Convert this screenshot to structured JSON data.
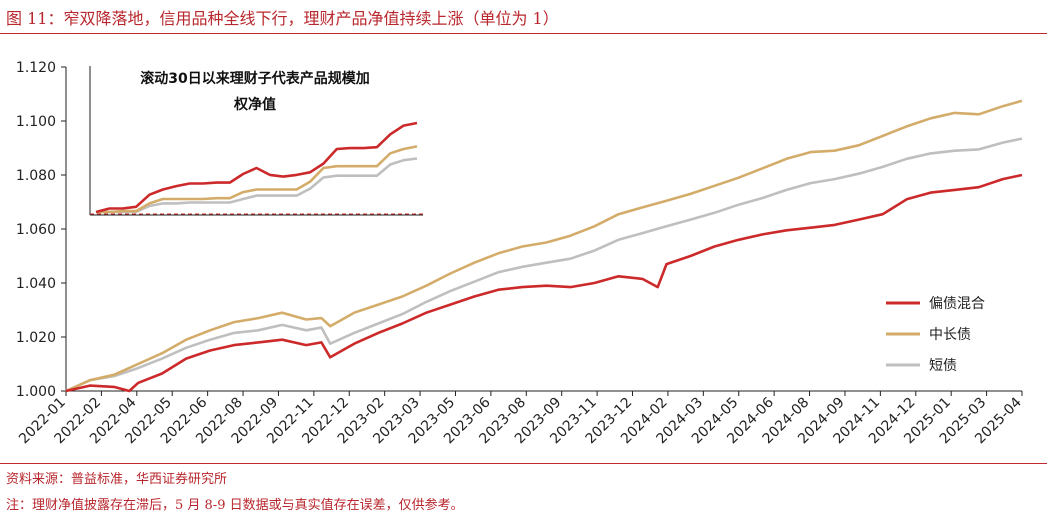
{
  "header": {
    "title": "图 11：窄双降落地，信用品种全线下行，理财产品净值持续上涨（单位为 1）"
  },
  "footer": {
    "source": "资料来源：普益标准，华西证券研究所",
    "note": "注：理财净值披露存在滞后，5 月 8-9 日数据或与真实值存在误差，仅供参考。"
  },
  "colors": {
    "accent": "#b8272d",
    "series_mixed": "#cc2a2a",
    "series_mid_long": "#d4ac6a",
    "series_short": "#bfbfbf"
  },
  "chart_data": {
    "type": "line",
    "title": "",
    "xlabel": "",
    "ylabel": "",
    "ylim": [
      1.0,
      1.12
    ],
    "yticks": [
      "1.000",
      "1.020",
      "1.040",
      "1.060",
      "1.080",
      "1.100",
      "1.120"
    ],
    "xticks": [
      "2022-01",
      "2022-02",
      "2022-04",
      "2022-05",
      "2022-06",
      "2022-08",
      "2022-09",
      "2022-11",
      "2022-12",
      "2023-02",
      "2023-03",
      "2023-05",
      "2023-06",
      "2023-08",
      "2023-09",
      "2023-11",
      "2023-12",
      "2024-02",
      "2024-03",
      "2024-05",
      "2024-06",
      "2024-08",
      "2024-09",
      "2024-11",
      "2024-12",
      "2025-01",
      "2025-03",
      "2025-04"
    ],
    "legend_position": "right",
    "grid": false,
    "series": [
      {
        "name": "偏债混合",
        "color": "#cc2a2a",
        "points": [
          [
            "2022-01",
            1.0
          ],
          [
            "2022-02",
            1.002
          ],
          [
            "2022-03",
            1.0015
          ],
          [
            "2022-03-20",
            1.0
          ],
          [
            "2022-04",
            1.003
          ],
          [
            "2022-05",
            1.0065
          ],
          [
            "2022-06",
            1.012
          ],
          [
            "2022-07",
            1.015
          ],
          [
            "2022-08",
            1.017
          ],
          [
            "2022-09",
            1.018
          ],
          [
            "2022-10",
            1.019
          ],
          [
            "2022-11",
            1.017
          ],
          [
            "2022-11-20",
            1.018
          ],
          [
            "2022-12",
            1.0125
          ],
          [
            "2023-01",
            1.0175
          ],
          [
            "2023-02",
            1.0215
          ],
          [
            "2023-03",
            1.025
          ],
          [
            "2023-04",
            1.029
          ],
          [
            "2023-05",
            1.032
          ],
          [
            "2023-06",
            1.035
          ],
          [
            "2023-07",
            1.0375
          ],
          [
            "2023-08",
            1.0385
          ],
          [
            "2023-09",
            1.039
          ],
          [
            "2023-10",
            1.0385
          ],
          [
            "2023-11",
            1.04
          ],
          [
            "2023-12",
            1.0425
          ],
          [
            "2024-01",
            1.0415
          ],
          [
            "2024-01-20",
            1.0385
          ],
          [
            "2024-02",
            1.047
          ],
          [
            "2024-03",
            1.05
          ],
          [
            "2024-04",
            1.0535
          ],
          [
            "2024-05",
            1.056
          ],
          [
            "2024-06",
            1.058
          ],
          [
            "2024-07",
            1.0595
          ],
          [
            "2024-08",
            1.0605
          ],
          [
            "2024-09",
            1.0615
          ],
          [
            "2024-10",
            1.0635
          ],
          [
            "2024-11",
            1.0655
          ],
          [
            "2024-12",
            1.071
          ],
          [
            "2025-01",
            1.0735
          ],
          [
            "2025-02",
            1.0745
          ],
          [
            "2025-03",
            1.0755
          ],
          [
            "2025-04",
            1.0785
          ],
          [
            "2025-04-25",
            1.08
          ]
        ]
      },
      {
        "name": "中长债",
        "color": "#d4ac6a",
        "points": [
          [
            "2022-01",
            1.0
          ],
          [
            "2022-02",
            1.004
          ],
          [
            "2022-03",
            1.006
          ],
          [
            "2022-04",
            1.01
          ],
          [
            "2022-05",
            1.014
          ],
          [
            "2022-06",
            1.019
          ],
          [
            "2022-07",
            1.0225
          ],
          [
            "2022-08",
            1.0255
          ],
          [
            "2022-09",
            1.027
          ],
          [
            "2022-10",
            1.029
          ],
          [
            "2022-11",
            1.0265
          ],
          [
            "2022-11-20",
            1.027
          ],
          [
            "2022-12",
            1.024
          ],
          [
            "2023-01",
            1.029
          ],
          [
            "2023-02",
            1.032
          ],
          [
            "2023-03",
            1.035
          ],
          [
            "2023-04",
            1.039
          ],
          [
            "2023-05",
            1.0435
          ],
          [
            "2023-06",
            1.0475
          ],
          [
            "2023-07",
            1.051
          ],
          [
            "2023-08",
            1.0535
          ],
          [
            "2023-09",
            1.055
          ],
          [
            "2023-10",
            1.0575
          ],
          [
            "2023-11",
            1.061
          ],
          [
            "2023-12",
            1.0655
          ],
          [
            "2024-01",
            1.068
          ],
          [
            "2024-02",
            1.0705
          ],
          [
            "2024-03",
            1.073
          ],
          [
            "2024-04",
            1.076
          ],
          [
            "2024-05",
            1.079
          ],
          [
            "2024-06",
            1.0825
          ],
          [
            "2024-07",
            1.086
          ],
          [
            "2024-08",
            1.0885
          ],
          [
            "2024-09",
            1.089
          ],
          [
            "2024-10",
            1.091
          ],
          [
            "2024-11",
            1.0945
          ],
          [
            "2024-12",
            1.098
          ],
          [
            "2025-01",
            1.101
          ],
          [
            "2025-02",
            1.103
          ],
          [
            "2025-03",
            1.1025
          ],
          [
            "2025-04",
            1.1055
          ],
          [
            "2025-04-25",
            1.1075
          ]
        ]
      },
      {
        "name": "短债",
        "color": "#bfbfbf",
        "points": [
          [
            "2022-01",
            1.0
          ],
          [
            "2022-02",
            1.004
          ],
          [
            "2022-03",
            1.0055
          ],
          [
            "2022-04",
            1.0085
          ],
          [
            "2022-05",
            1.012
          ],
          [
            "2022-06",
            1.016
          ],
          [
            "2022-07",
            1.019
          ],
          [
            "2022-08",
            1.0215
          ],
          [
            "2022-09",
            1.0225
          ],
          [
            "2022-10",
            1.0245
          ],
          [
            "2022-11",
            1.0225
          ],
          [
            "2022-11-20",
            1.0235
          ],
          [
            "2022-12",
            1.0175
          ],
          [
            "2023-01",
            1.0215
          ],
          [
            "2023-02",
            1.025
          ],
          [
            "2023-03",
            1.0285
          ],
          [
            "2023-04",
            1.033
          ],
          [
            "2023-05",
            1.037
          ],
          [
            "2023-06",
            1.0405
          ],
          [
            "2023-07",
            1.044
          ],
          [
            "2023-08",
            1.046
          ],
          [
            "2023-09",
            1.0475
          ],
          [
            "2023-10",
            1.049
          ],
          [
            "2023-11",
            1.052
          ],
          [
            "2023-12",
            1.056
          ],
          [
            "2024-01",
            1.0585
          ],
          [
            "2024-02",
            1.061
          ],
          [
            "2024-03",
            1.0635
          ],
          [
            "2024-04",
            1.066
          ],
          [
            "2024-05",
            1.069
          ],
          [
            "2024-06",
            1.0715
          ],
          [
            "2024-07",
            1.0745
          ],
          [
            "2024-08",
            1.077
          ],
          [
            "2024-09",
            1.0785
          ],
          [
            "2024-10",
            1.0805
          ],
          [
            "2024-11",
            1.083
          ],
          [
            "2024-12",
            1.086
          ],
          [
            "2025-01",
            1.088
          ],
          [
            "2025-02",
            1.089
          ],
          [
            "2025-03",
            1.0895
          ],
          [
            "2025-04",
            1.092
          ],
          [
            "2025-04-25",
            1.0935
          ]
        ]
      }
    ],
    "inset": {
      "title_line1": "滚动30日以来理财子代表产品规模加",
      "title_line2": "权净值",
      "series": [
        {
          "name": "偏债混合",
          "color": "#cc2a2a",
          "values": [
            0.0,
            0.4,
            0.4,
            0.6,
            2.0,
            2.6,
            3.0,
            3.3,
            3.3,
            3.4,
            3.4,
            4.4,
            5.1,
            4.3,
            4.1,
            4.3,
            4.6,
            5.6,
            7.3,
            7.4,
            7.4,
            7.5,
            9.0,
            10.0,
            10.3
          ]
        },
        {
          "name": "中长债",
          "color": "#d4ac6a",
          "values": [
            0.0,
            0.0,
            0.1,
            0.1,
            1.0,
            1.5,
            1.5,
            1.5,
            1.5,
            1.6,
            1.6,
            2.3,
            2.6,
            2.6,
            2.6,
            2.6,
            3.5,
            5.1,
            5.3,
            5.3,
            5.3,
            5.3,
            6.8,
            7.3,
            7.6
          ]
        },
        {
          "name": "短债",
          "color": "#bfbfbf",
          "values": [
            0.0,
            0.0,
            0.0,
            0.0,
            0.7,
            1.0,
            1.0,
            1.1,
            1.1,
            1.1,
            1.1,
            1.5,
            1.9,
            1.9,
            1.9,
            1.9,
            2.7,
            4.0,
            4.2,
            4.2,
            4.2,
            4.2,
            5.5,
            6.0,
            6.2
          ]
        }
      ]
    }
  }
}
